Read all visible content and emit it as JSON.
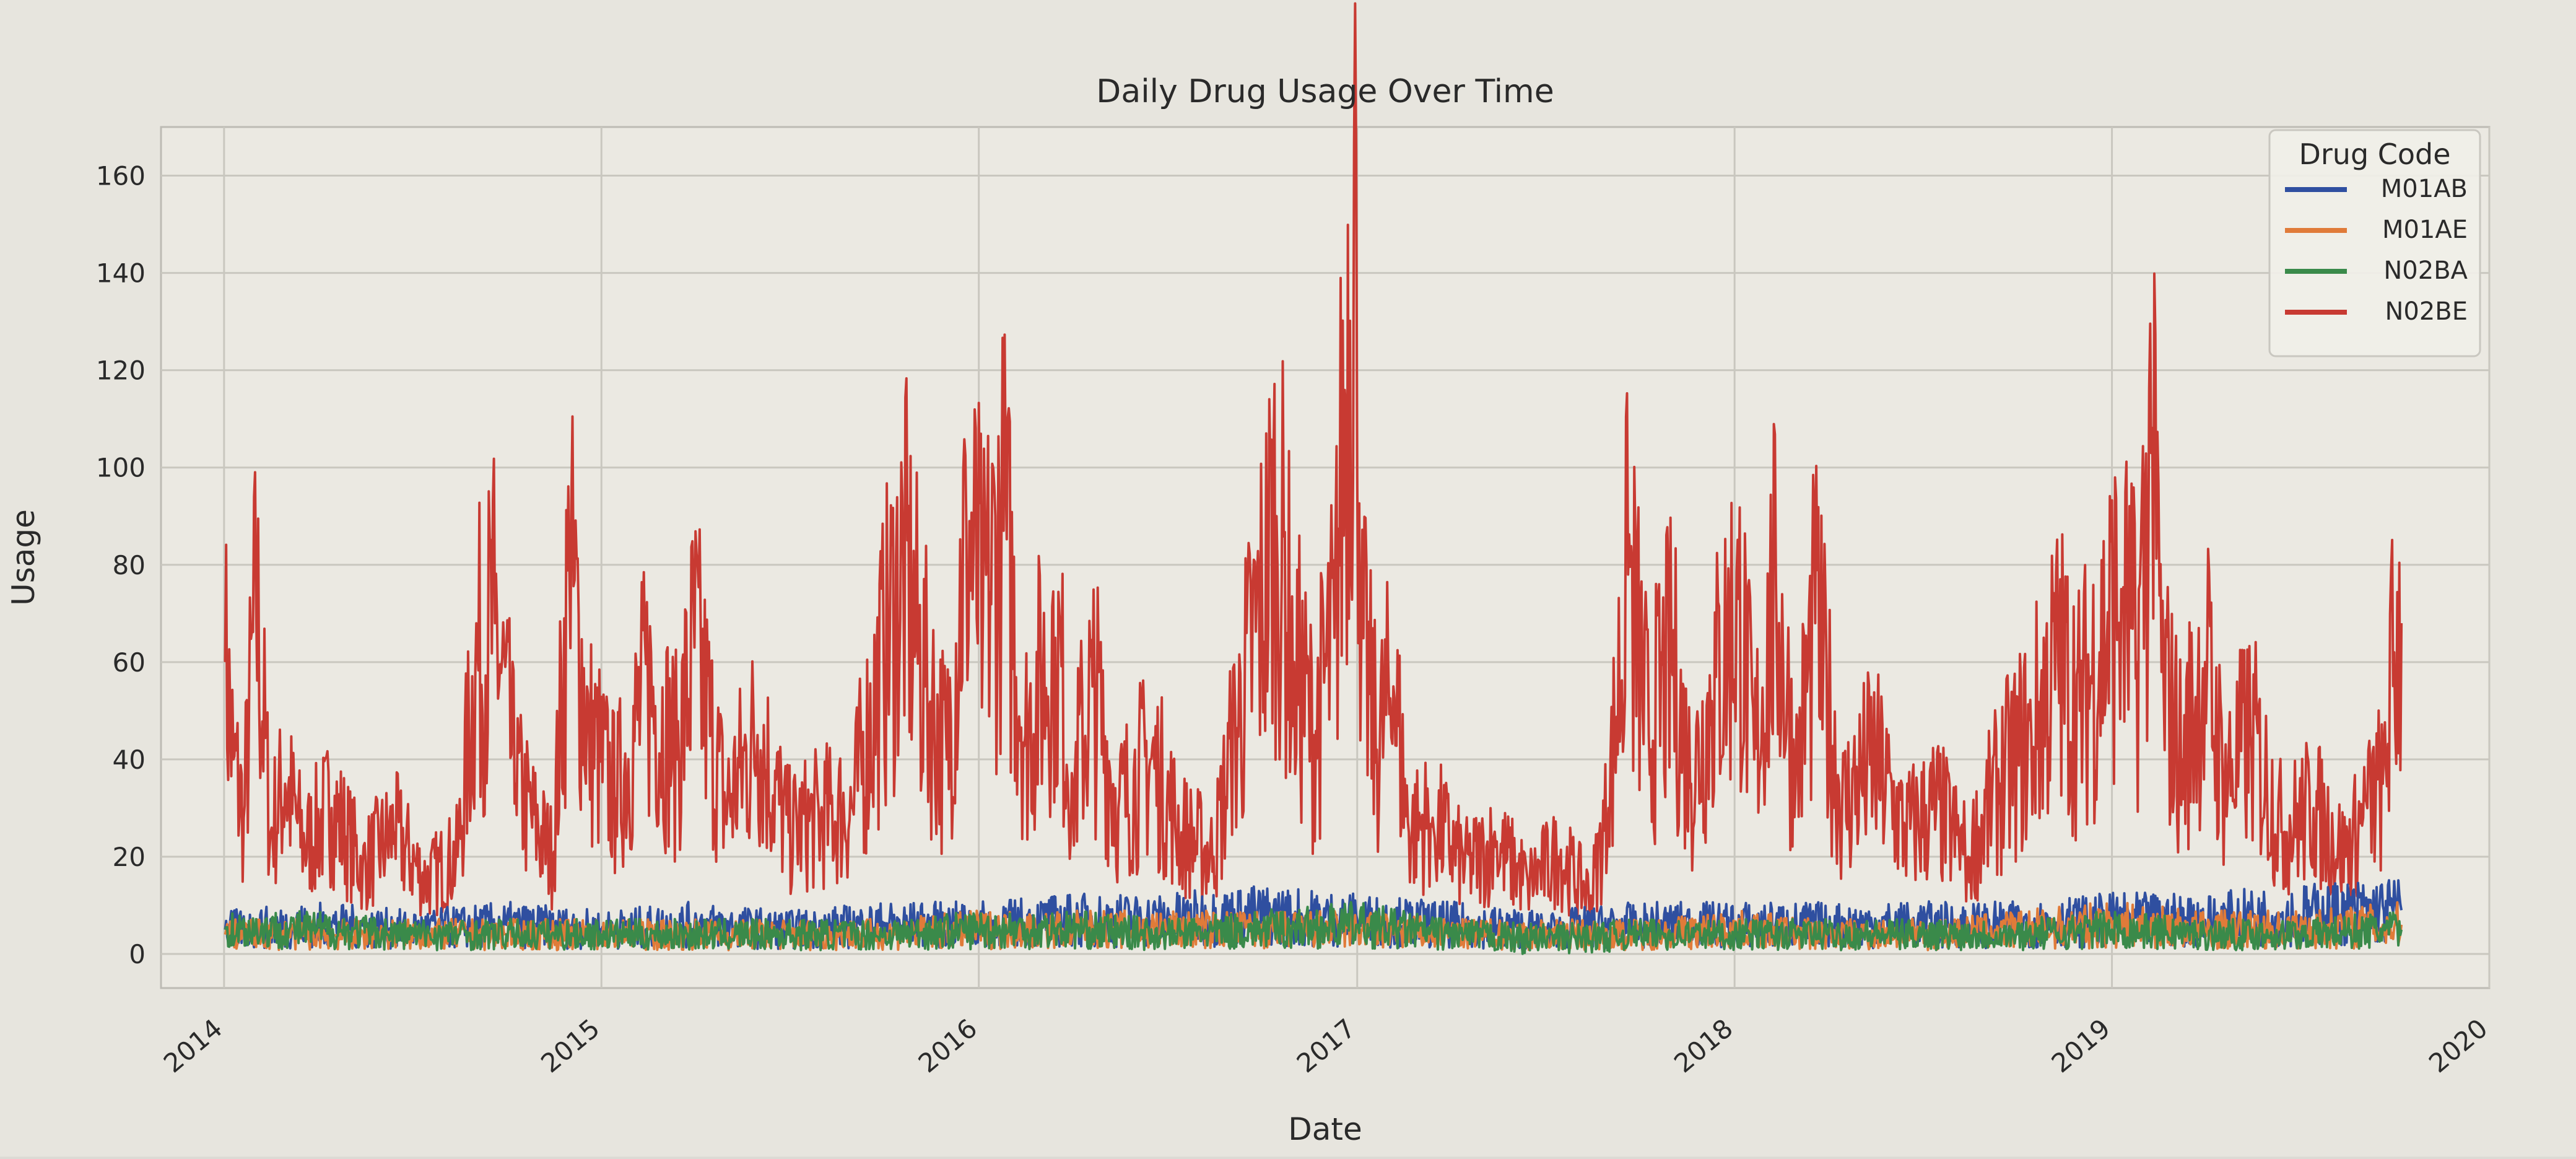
{
  "chart_data": {
    "type": "line",
    "title": "Daily Drug Usage Over Time",
    "xlabel": "Date",
    "ylabel": "Usage",
    "xlim": [
      "2013-11-01",
      "2020-01-01"
    ],
    "ylim": [
      -7,
      170
    ],
    "x_ticks": [
      "2014",
      "2015",
      "2016",
      "2017",
      "2018",
      "2019",
      "2020"
    ],
    "y_ticks": [
      0,
      20,
      40,
      60,
      80,
      100,
      120,
      140,
      160
    ],
    "grid": true,
    "legend": {
      "title": "Drug Code",
      "placement": "top-right"
    },
    "series": [
      {
        "name": "M01AB",
        "color": "#2f4fa0",
        "points": [
          [
            "2014-01-02",
            5
          ],
          [
            "2014-04-01",
            6
          ],
          [
            "2014-07-01",
            5
          ],
          [
            "2014-10-01",
            6
          ],
          [
            "2015-01-01",
            5
          ],
          [
            "2015-04-01",
            6
          ],
          [
            "2015-07-01",
            5
          ],
          [
            "2015-10-01",
            6
          ],
          [
            "2016-01-01",
            6
          ],
          [
            "2016-04-01",
            7
          ],
          [
            "2016-07-01",
            7
          ],
          [
            "2016-10-01",
            8
          ],
          [
            "2017-01-01",
            7
          ],
          [
            "2017-04-01",
            6
          ],
          [
            "2017-07-01",
            5
          ],
          [
            "2017-10-01",
            6
          ],
          [
            "2018-01-01",
            6
          ],
          [
            "2018-04-01",
            6
          ],
          [
            "2018-07-01",
            6
          ],
          [
            "2018-10-01",
            6
          ],
          [
            "2019-01-01",
            7
          ],
          [
            "2019-04-01",
            7
          ],
          [
            "2019-07-01",
            8
          ],
          [
            "2019-10-08",
            9
          ]
        ]
      },
      {
        "name": "M01AE",
        "color": "#e07b39",
        "points": [
          [
            "2014-01-02",
            4
          ],
          [
            "2014-04-01",
            4
          ],
          [
            "2014-07-01",
            4
          ],
          [
            "2014-10-01",
            4
          ],
          [
            "2015-01-01",
            4
          ],
          [
            "2015-04-01",
            4
          ],
          [
            "2015-07-01",
            4
          ],
          [
            "2015-10-01",
            4
          ],
          [
            "2016-01-01",
            5
          ],
          [
            "2016-04-01",
            5
          ],
          [
            "2016-07-01",
            5
          ],
          [
            "2016-10-01",
            5
          ],
          [
            "2017-01-01",
            5
          ],
          [
            "2017-04-01",
            4
          ],
          [
            "2017-07-01",
            4
          ],
          [
            "2017-10-01",
            4
          ],
          [
            "2018-01-01",
            5
          ],
          [
            "2018-04-01",
            4
          ],
          [
            "2018-07-01",
            4
          ],
          [
            "2018-10-01",
            5
          ],
          [
            "2019-01-01",
            6
          ],
          [
            "2019-04-01",
            5
          ],
          [
            "2019-07-01",
            5
          ],
          [
            "2019-10-08",
            6
          ]
        ]
      },
      {
        "name": "N02BA",
        "color": "#3a8a4a",
        "points": [
          [
            "2014-01-02",
            5
          ],
          [
            "2014-04-01",
            5
          ],
          [
            "2014-07-01",
            4
          ],
          [
            "2014-10-01",
            4
          ],
          [
            "2015-01-01",
            4
          ],
          [
            "2015-04-01",
            4
          ],
          [
            "2015-07-01",
            4
          ],
          [
            "2015-10-01",
            4
          ],
          [
            "2016-01-01",
            5
          ],
          [
            "2016-04-01",
            5
          ],
          [
            "2016-07-01",
            4
          ],
          [
            "2016-10-01",
            5
          ],
          [
            "2017-01-01",
            6
          ],
          [
            "2017-04-01",
            4
          ],
          [
            "2017-07-01",
            3
          ],
          [
            "2017-10-01",
            4
          ],
          [
            "2018-01-01",
            4
          ],
          [
            "2018-04-01",
            4
          ],
          [
            "2018-07-01",
            4
          ],
          [
            "2018-10-01",
            4
          ],
          [
            "2019-01-01",
            5
          ],
          [
            "2019-04-01",
            4
          ],
          [
            "2019-07-01",
            4
          ],
          [
            "2019-10-08",
            5
          ]
        ]
      },
      {
        "name": "N02BE",
        "color": "#c83a32",
        "points": [
          [
            "2014-01-02",
            60
          ],
          [
            "2014-01-10",
            40
          ],
          [
            "2014-01-20",
            28
          ],
          [
            "2014-02-01",
            72
          ],
          [
            "2014-02-15",
            25
          ],
          [
            "2014-03-01",
            35
          ],
          [
            "2014-03-20",
            22
          ],
          [
            "2014-04-15",
            30
          ],
          [
            "2014-05-15",
            18
          ],
          [
            "2014-06-15",
            25
          ],
          [
            "2014-07-15",
            15
          ],
          [
            "2014-08-15",
            20
          ],
          [
            "2014-09-01",
            58
          ],
          [
            "2014-09-20",
            68
          ],
          [
            "2014-10-10",
            35
          ],
          [
            "2014-11-01",
            25
          ],
          [
            "2014-11-15",
            20
          ],
          [
            "2014-12-01",
            79
          ],
          [
            "2014-12-20",
            45
          ],
          [
            "2015-01-15",
            32
          ],
          [
            "2015-02-15",
            55
          ],
          [
            "2015-03-15",
            40
          ],
          [
            "2015-04-01",
            63
          ],
          [
            "2015-05-01",
            30
          ],
          [
            "2015-06-01",
            45
          ],
          [
            "2015-07-01",
            25
          ],
          [
            "2015-08-01",
            28
          ],
          [
            "2015-09-01",
            30
          ],
          [
            "2015-10-01",
            60
          ],
          [
            "2015-10-20",
            80
          ],
          [
            "2015-11-10",
            55
          ],
          [
            "2015-12-01",
            40
          ],
          [
            "2015-12-20",
            88
          ],
          [
            "2016-01-05",
            70
          ],
          [
            "2016-01-25",
            87
          ],
          [
            "2016-02-15",
            45
          ],
          [
            "2016-03-15",
            65
          ],
          [
            "2016-04-01",
            35
          ],
          [
            "2016-04-20",
            55
          ],
          [
            "2016-05-15",
            30
          ],
          [
            "2016-06-15",
            40
          ],
          [
            "2016-07-15",
            25
          ],
          [
            "2016-08-15",
            20
          ],
          [
            "2016-09-01",
            40
          ],
          [
            "2016-10-01",
            72
          ],
          [
            "2016-10-15",
            90
          ],
          [
            "2016-11-01",
            60
          ],
          [
            "2016-11-20",
            45
          ],
          [
            "2016-12-10",
            65
          ],
          [
            "2016-12-31",
            165
          ],
          [
            "2017-01-05",
            65
          ],
          [
            "2017-01-20",
            42
          ],
          [
            "2017-02-05",
            55
          ],
          [
            "2017-02-20",
            25
          ],
          [
            "2017-03-15",
            28
          ],
          [
            "2017-04-15",
            18
          ],
          [
            "2017-05-15",
            22
          ],
          [
            "2017-06-15",
            15
          ],
          [
            "2017-07-15",
            20
          ],
          [
            "2017-08-15",
            12
          ],
          [
            "2017-09-01",
            30
          ],
          [
            "2017-09-20",
            78
          ],
          [
            "2017-10-10",
            45
          ],
          [
            "2017-11-01",
            60
          ],
          [
            "2017-11-20",
            35
          ],
          [
            "2017-12-10",
            52
          ],
          [
            "2018-01-05",
            73
          ],
          [
            "2018-01-20",
            40
          ],
          [
            "2018-02-10",
            76
          ],
          [
            "2018-03-01",
            35
          ],
          [
            "2018-03-20",
            68
          ],
          [
            "2018-04-15",
            30
          ],
          [
            "2018-05-15",
            40
          ],
          [
            "2018-06-15",
            25
          ],
          [
            "2018-07-15",
            30
          ],
          [
            "2018-08-15",
            20
          ],
          [
            "2018-09-15",
            35
          ],
          [
            "2018-10-15",
            45
          ],
          [
            "2018-11-10",
            60
          ],
          [
            "2018-12-01",
            50
          ],
          [
            "2018-12-20",
            62
          ],
          [
            "2019-01-10",
            75
          ],
          [
            "2019-01-25",
            60
          ],
          [
            "2019-02-08",
            103
          ],
          [
            "2019-02-20",
            55
          ],
          [
            "2019-03-10",
            40
          ],
          [
            "2019-04-01",
            60
          ],
          [
            "2019-04-20",
            35
          ],
          [
            "2019-05-15",
            45
          ],
          [
            "2019-06-15",
            25
          ],
          [
            "2019-07-15",
            30
          ],
          [
            "2019-08-15",
            20
          ],
          [
            "2019-09-01",
            28
          ],
          [
            "2019-09-20",
            35
          ],
          [
            "2019-10-01",
            62
          ],
          [
            "2019-10-08",
            68
          ]
        ]
      }
    ]
  }
}
